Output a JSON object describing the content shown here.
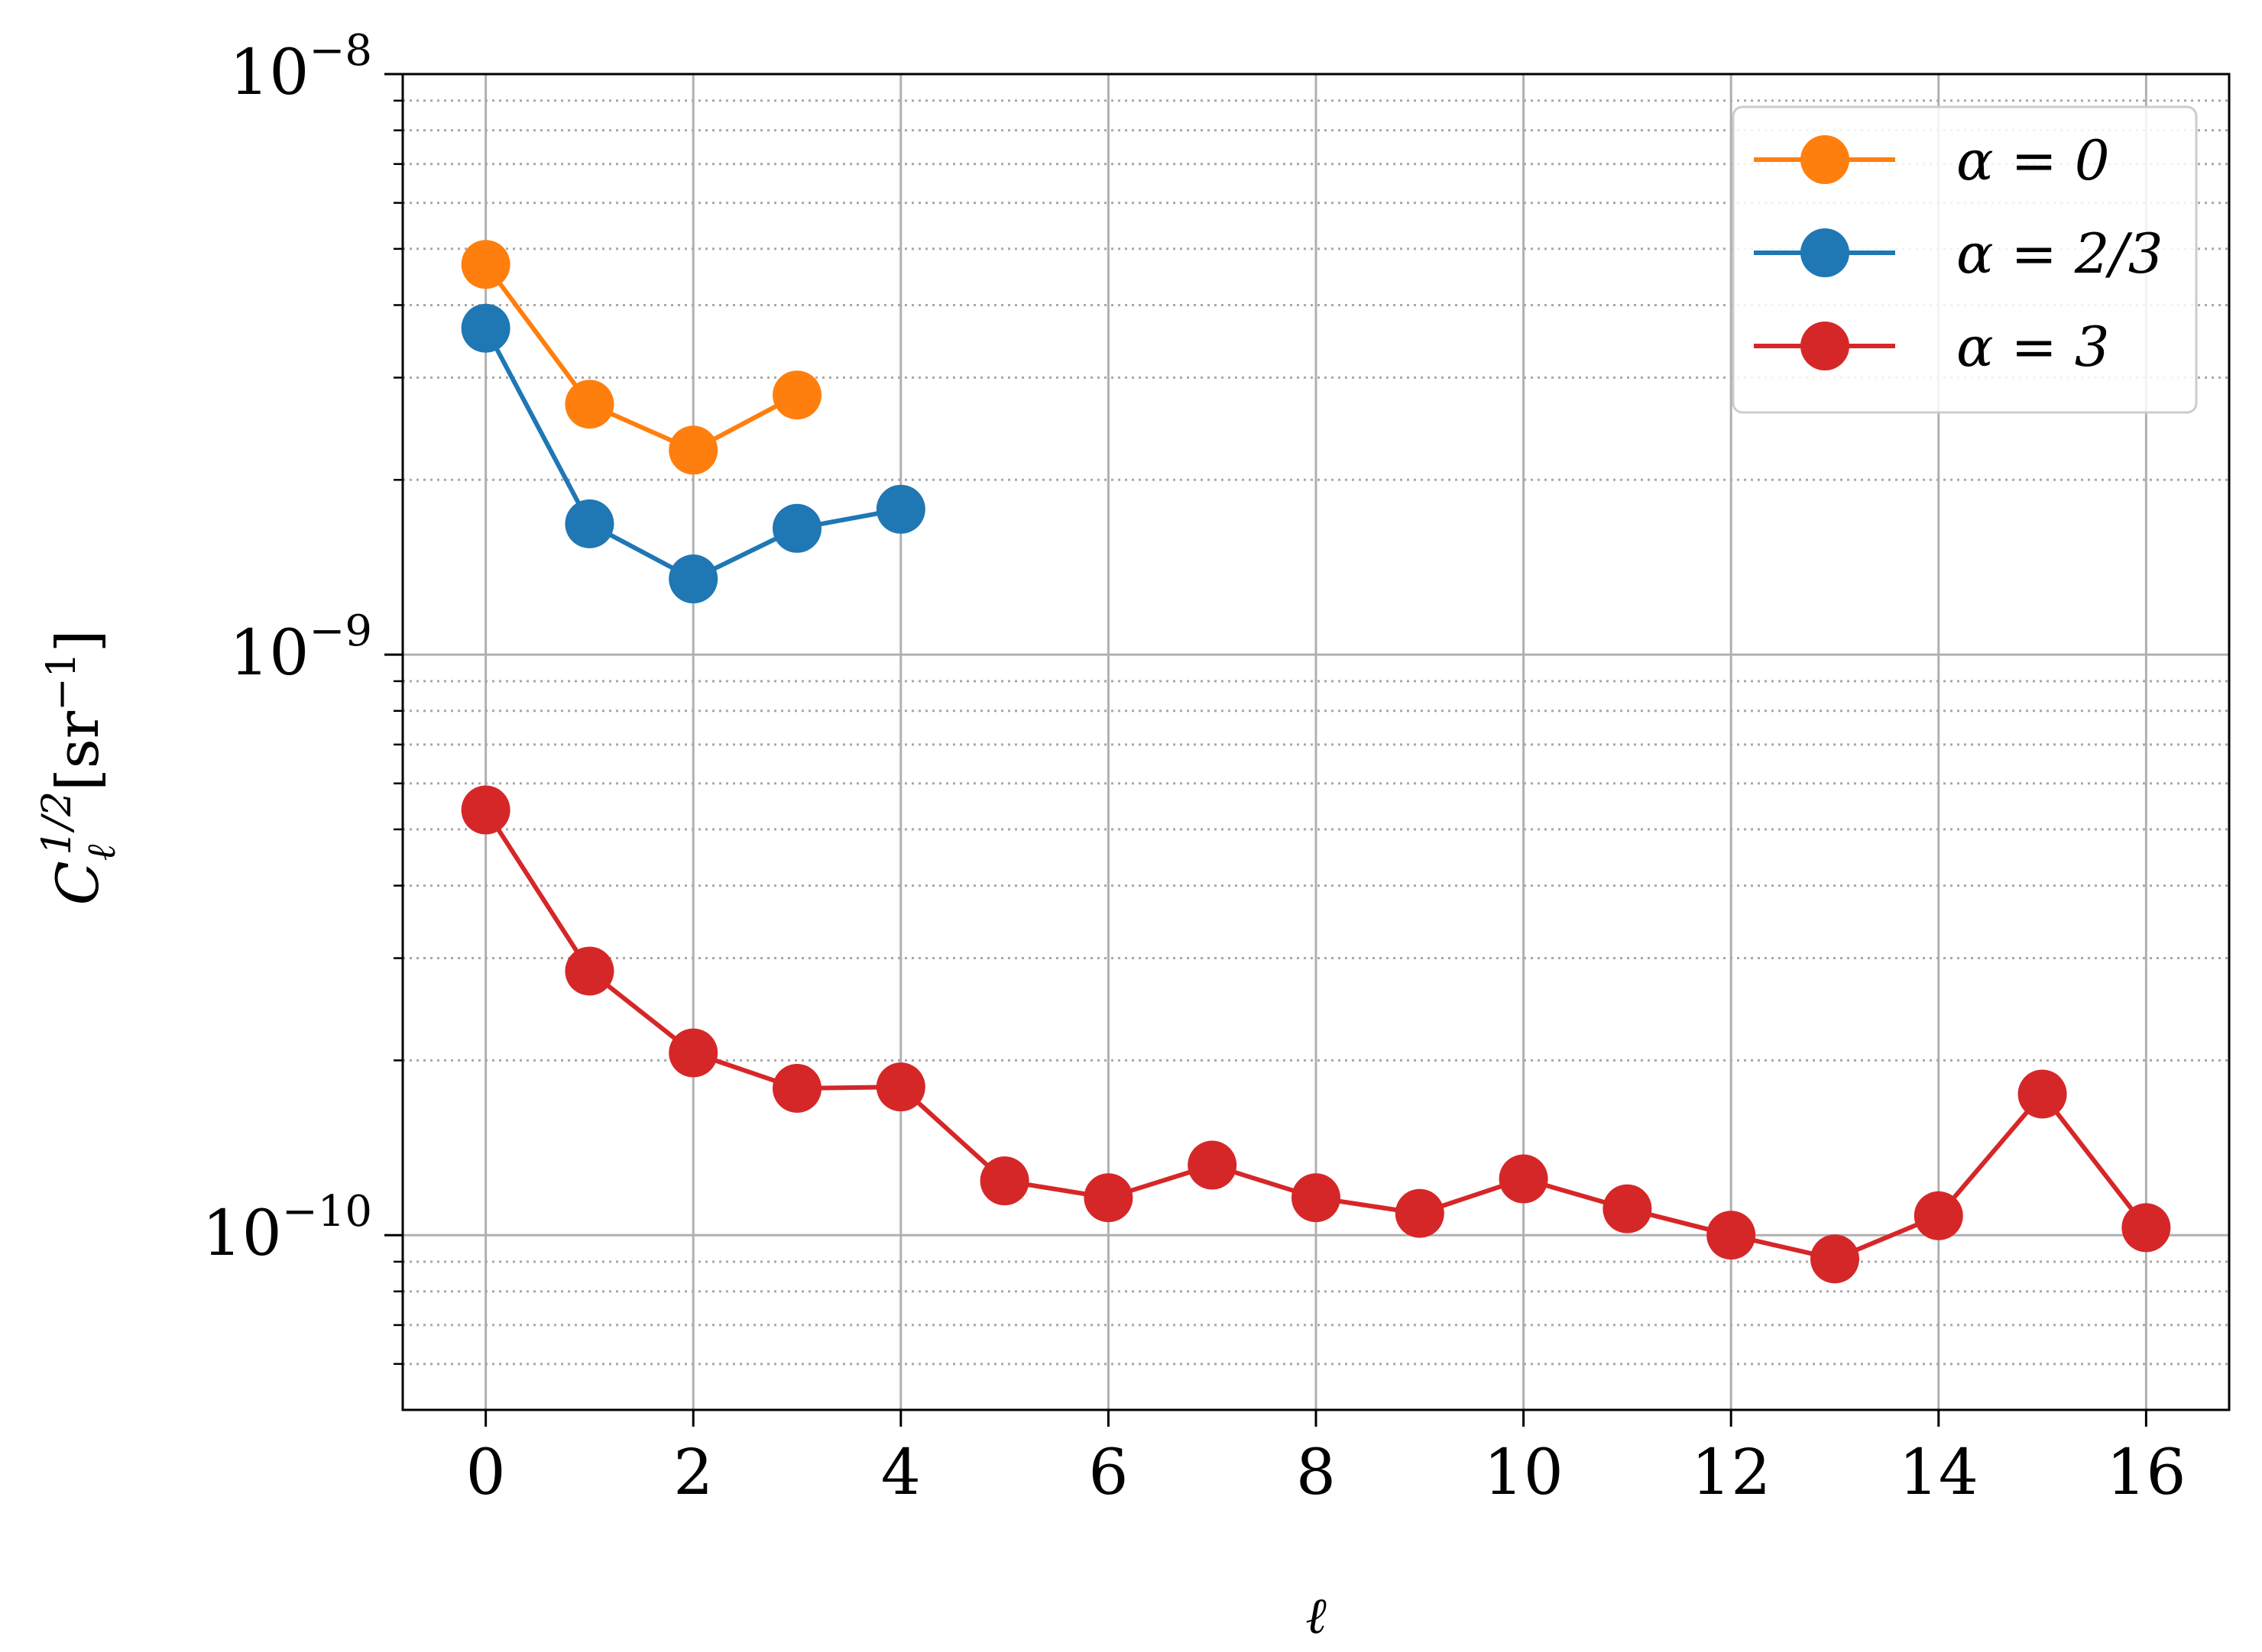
{
  "chart_data": {
    "type": "line",
    "xlabel": "ℓ",
    "ylabel": "C",
    "ylabel_sup": "1/2",
    "ylabel_sub": "ℓ",
    "ylabel_unit": "[sr",
    "ylabel_unit_sup": "−1",
    "ylabel_unit_close": "]",
    "xlim": [
      -0.8,
      16.8
    ],
    "ylim": [
      5e-11,
      1e-08
    ],
    "yscale": "log",
    "grid": true,
    "minor_grid": "dotted",
    "legend_position": "top-right",
    "x_ticks": [
      0,
      2,
      4,
      6,
      8,
      10,
      12,
      14,
      16
    ],
    "x_tick_labels": [
      "0",
      "2",
      "4",
      "6",
      "8",
      "10",
      "12",
      "14",
      "16"
    ],
    "y_ticks": [
      {
        "value": 1e-08,
        "base": "10",
        "exp": "−8"
      },
      {
        "value": 1e-09,
        "base": "10",
        "exp": "−9"
      },
      {
        "value": 1e-10,
        "base": "10",
        "exp": "−10"
      }
    ],
    "series": [
      {
        "name": "α = 0",
        "color": "#ff7f0e",
        "x": [
          0,
          1,
          2,
          3
        ],
        "y": [
          4.7e-09,
          2.7e-09,
          2.25e-09,
          2.8e-09
        ]
      },
      {
        "name": "α = 2/3",
        "color": "#1f77b4",
        "x": [
          0,
          1,
          2,
          3,
          4
        ],
        "y": [
          3.65e-09,
          1.68e-09,
          1.35e-09,
          1.65e-09,
          1.78e-09
        ]
      },
      {
        "name": "α = 3",
        "color": "#d62728",
        "x": [
          0,
          1,
          2,
          3,
          4,
          5,
          6,
          7,
          8,
          9,
          10,
          11,
          12,
          13,
          14,
          15,
          16
        ],
        "y": [
          5.4e-10,
          2.85e-10,
          2.06e-10,
          1.79e-10,
          1.8e-10,
          1.24e-10,
          1.16e-10,
          1.32e-10,
          1.16e-10,
          1.09e-10,
          1.25e-10,
          1.11e-10,
          1e-10,
          9.1e-11,
          1.08e-10,
          1.75e-10,
          1.03e-10
        ]
      }
    ]
  }
}
